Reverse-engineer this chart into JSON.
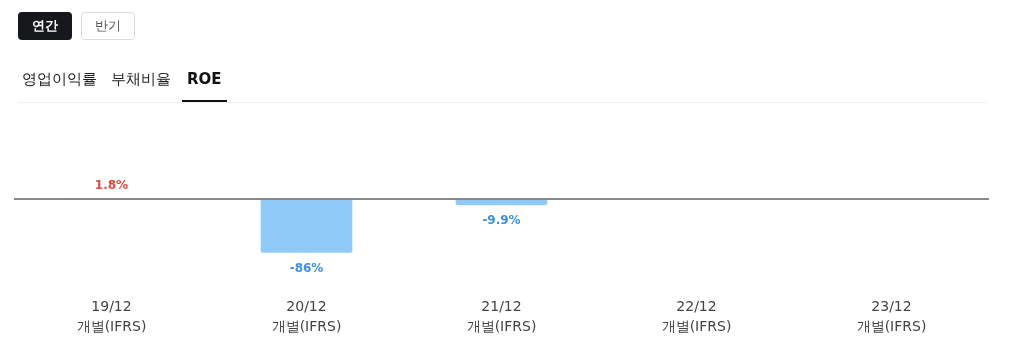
{
  "chart_data": {
    "type": "bar",
    "title": "ROE",
    "annotations": [
      "연간",
      "반기",
      "영업이익률",
      "부채비율"
    ],
    "categories": [
      "19/12\n개별(IFRS)",
      "20/12\n개별(IFRS)",
      "21/12\n개별(IFRS)",
      "22/12\n개별(IFRS)",
      "23/12\n개별(IFRS)"
    ],
    "values": [
      1.8,
      -86,
      -9.9,
      null,
      null
    ],
    "colors": [
      "#f4a3a3",
      "#90caf9",
      "#90caf9",
      null,
      null
    ],
    "value_labels": [
      "1.8%",
      "-86%",
      "-9.9%",
      null,
      null
    ],
    "grid": false
  }
}
